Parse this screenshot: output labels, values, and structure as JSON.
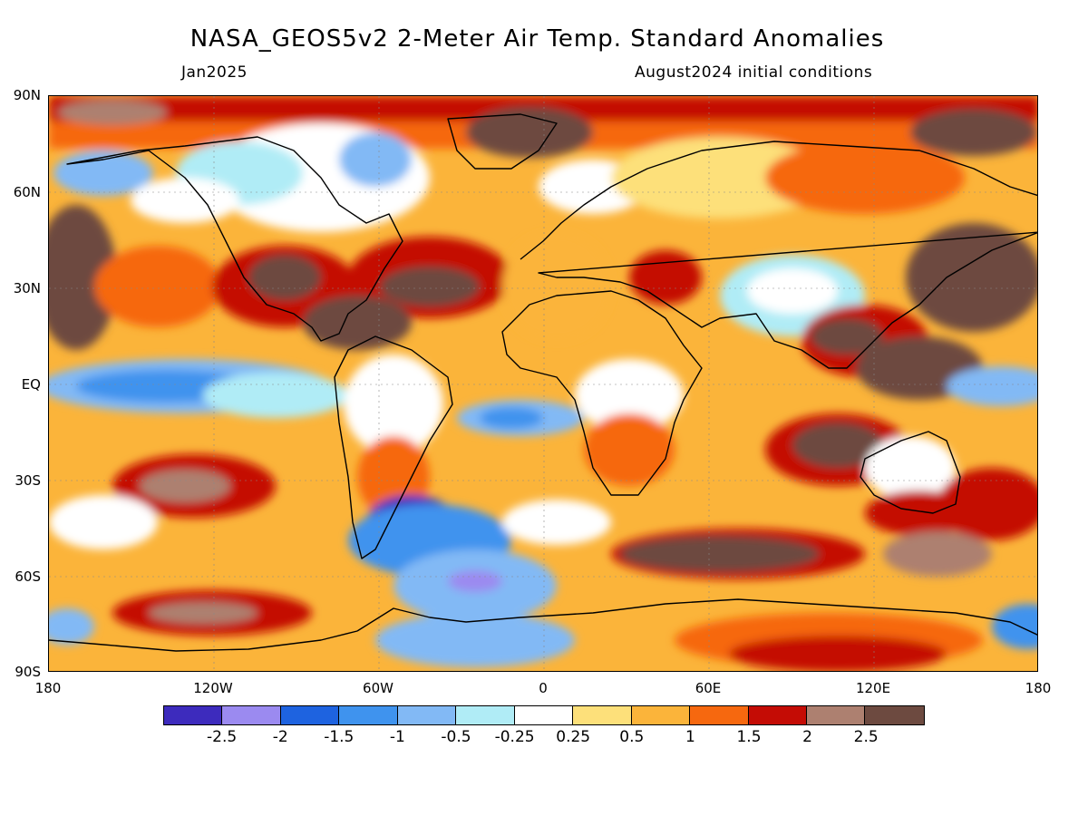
{
  "header": {
    "title": "NASA_GEOS5v2 2-Meter Air Temp. Standard Anomalies",
    "valid_month": "Jan2025",
    "init": "August2024 initial conditions"
  },
  "axes": {
    "lat_labels": [
      "90N",
      "60N",
      "30N",
      "EQ",
      "30S",
      "60S",
      "90S"
    ],
    "lon_labels": [
      "180",
      "120W",
      "60W",
      "0",
      "60E",
      "120E",
      "180"
    ]
  },
  "colorbar": {
    "colors": [
      "#3d2bbd",
      "#9b8af0",
      "#1e63e0",
      "#3f93ee",
      "#82b9f5",
      "#b0ecf6",
      "#ffffff",
      "#fde07a",
      "#fbb43a",
      "#f6680f",
      "#c40c05",
      "#ad8070",
      "#6d4a40"
    ],
    "labels": [
      "-2.5",
      "-2",
      "-1.5",
      "-1",
      "-0.5",
      "-0.25",
      "0.25",
      "0.5",
      "1",
      "1.5",
      "2",
      "2.5"
    ]
  }
}
